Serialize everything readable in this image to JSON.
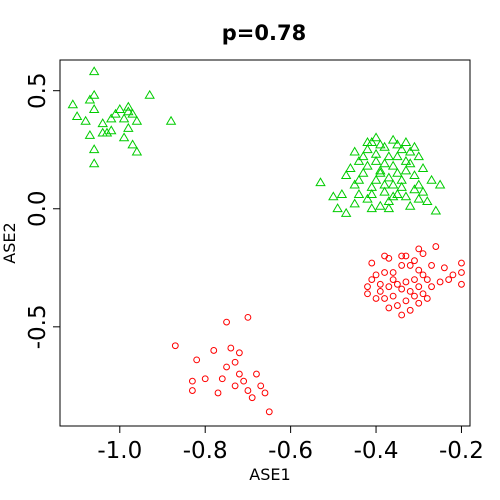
{
  "chart_data": {
    "type": "scatter",
    "title": "p=0.78",
    "xlabel": "ASE1",
    "ylabel": "ASE2",
    "xlim": [
      -1.14,
      -0.18
    ],
    "ylim": [
      -0.92,
      0.63
    ],
    "xticks": [
      -1.0,
      -0.8,
      -0.6,
      -0.4,
      -0.2
    ],
    "xtick_labels": [
      "-1.0",
      "-0.8",
      "-0.6",
      "-0.4",
      "-0.2"
    ],
    "yticks": [
      -0.5,
      0.0,
      0.5
    ],
    "ytick_labels": [
      "-0.5",
      "0.0",
      "0.5"
    ],
    "grid": false,
    "series": [
      {
        "marker": "triangle",
        "color": "#00cc00",
        "points": [
          [
            -1.06,
            0.58
          ],
          [
            -1.11,
            0.44
          ],
          [
            -1.07,
            0.46
          ],
          [
            -1.06,
            0.48
          ],
          [
            -1.06,
            0.42
          ],
          [
            -1.08,
            0.37
          ],
          [
            -1.1,
            0.39
          ],
          [
            -1.04,
            0.32
          ],
          [
            -1.07,
            0.31
          ],
          [
            -1.03,
            0.32
          ],
          [
            -1.02,
            0.38
          ],
          [
            -1.01,
            0.4
          ],
          [
            -1.0,
            0.42
          ],
          [
            -0.99,
            0.38
          ],
          [
            -0.98,
            0.41
          ],
          [
            -0.97,
            0.4
          ],
          [
            -0.96,
            0.37
          ],
          [
            -0.98,
            0.34
          ],
          [
            -0.99,
            0.3
          ],
          [
            -0.97,
            0.27
          ],
          [
            -0.96,
            0.24
          ],
          [
            -1.06,
            0.25
          ],
          [
            -1.06,
            0.19
          ],
          [
            -0.98,
            0.43
          ],
          [
            -0.93,
            0.48
          ],
          [
            -0.88,
            0.37
          ],
          [
            -1.04,
            0.36
          ],
          [
            -1.02,
            0.33
          ],
          [
            -0.4,
            0.3
          ],
          [
            -0.41,
            0.28
          ],
          [
            -0.39,
            0.27
          ],
          [
            -0.38,
            0.26
          ],
          [
            -0.36,
            0.29
          ],
          [
            -0.35,
            0.27
          ],
          [
            -0.34,
            0.25
          ],
          [
            -0.33,
            0.28
          ],
          [
            -0.32,
            0.24
          ],
          [
            -0.31,
            0.26
          ],
          [
            -0.3,
            0.22
          ],
          [
            -0.42,
            0.25
          ],
          [
            -0.43,
            0.22
          ],
          [
            -0.44,
            0.2
          ],
          [
            -0.45,
            0.24
          ],
          [
            -0.46,
            0.17
          ],
          [
            -0.47,
            0.14
          ],
          [
            -0.45,
            0.1
          ],
          [
            -0.44,
            0.06
          ],
          [
            -0.42,
            0.04
          ],
          [
            -0.41,
            0.09
          ],
          [
            -0.4,
            0.12
          ],
          [
            -0.39,
            0.16
          ],
          [
            -0.38,
            0.19
          ],
          [
            -0.37,
            0.22
          ],
          [
            -0.36,
            0.18
          ],
          [
            -0.35,
            0.15
          ],
          [
            -0.34,
            0.12
          ],
          [
            -0.33,
            0.16
          ],
          [
            -0.32,
            0.19
          ],
          [
            -0.31,
            0.14
          ],
          [
            -0.3,
            0.1
          ],
          [
            -0.29,
            0.07
          ],
          [
            -0.3,
            0.04
          ],
          [
            -0.32,
            0.01
          ],
          [
            -0.35,
            0.06
          ],
          [
            -0.37,
            0.03
          ],
          [
            -0.38,
            0.07
          ],
          [
            -0.39,
            0.01
          ],
          [
            -0.41,
            0.0
          ],
          [
            -0.43,
            0.15
          ],
          [
            -0.48,
            0.06
          ],
          [
            -0.5,
            0.05
          ],
          [
            -0.53,
            0.11
          ],
          [
            -0.49,
            0.0
          ],
          [
            -0.47,
            -0.02
          ],
          [
            -0.45,
            0.02
          ],
          [
            -0.4,
            0.2
          ],
          [
            -0.37,
            0.13
          ],
          [
            -0.34,
            0.09
          ],
          [
            -0.36,
            0.1
          ],
          [
            -0.33,
            0.05
          ],
          [
            -0.28,
            0.03
          ],
          [
            -0.27,
            0.12
          ],
          [
            -0.25,
            0.1
          ],
          [
            -0.29,
            0.17
          ],
          [
            -0.33,
            0.2
          ],
          [
            -0.35,
            0.22
          ],
          [
            -0.4,
            0.23
          ],
          [
            -0.42,
            0.18
          ],
          [
            -0.44,
            0.12
          ],
          [
            -0.38,
            0.1
          ],
          [
            -0.36,
            0.05
          ],
          [
            -0.31,
            0.08
          ],
          [
            -0.39,
            0.15
          ],
          [
            -0.41,
            0.06
          ],
          [
            -0.37,
            0.0
          ],
          [
            -0.26,
            -0.01
          ],
          [
            -0.42,
            0.28
          ]
        ]
      },
      {
        "marker": "circle",
        "color": "#ff0000",
        "points": [
          [
            -0.37,
            -0.21
          ],
          [
            -0.38,
            -0.2
          ],
          [
            -0.41,
            -0.23
          ],
          [
            -0.33,
            -0.2
          ],
          [
            -0.3,
            -0.17
          ],
          [
            -0.29,
            -0.19
          ],
          [
            -0.26,
            -0.16
          ],
          [
            -0.2,
            -0.23
          ],
          [
            -0.2,
            -0.27
          ],
          [
            -0.2,
            -0.32
          ],
          [
            -0.22,
            -0.28
          ],
          [
            -0.24,
            -0.25
          ],
          [
            -0.27,
            -0.24
          ],
          [
            -0.3,
            -0.26
          ],
          [
            -0.32,
            -0.24
          ],
          [
            -0.34,
            -0.24
          ],
          [
            -0.36,
            -0.27
          ],
          [
            -0.38,
            -0.27
          ],
          [
            -0.4,
            -0.28
          ],
          [
            -0.41,
            -0.3
          ],
          [
            -0.42,
            -0.33
          ],
          [
            -0.42,
            -0.36
          ],
          [
            -0.39,
            -0.35
          ],
          [
            -0.37,
            -0.33
          ],
          [
            -0.35,
            -0.32
          ],
          [
            -0.33,
            -0.31
          ],
          [
            -0.31,
            -0.3
          ],
          [
            -0.29,
            -0.28
          ],
          [
            -0.28,
            -0.3
          ],
          [
            -0.3,
            -0.33
          ],
          [
            -0.32,
            -0.35
          ],
          [
            -0.34,
            -0.34
          ],
          [
            -0.36,
            -0.37
          ],
          [
            -0.38,
            -0.38
          ],
          [
            -0.4,
            -0.38
          ],
          [
            -0.35,
            -0.41
          ],
          [
            -0.33,
            -0.39
          ],
          [
            -0.31,
            -0.37
          ],
          [
            -0.29,
            -0.36
          ],
          [
            -0.27,
            -0.33
          ],
          [
            -0.25,
            -0.31
          ],
          [
            -0.32,
            -0.43
          ],
          [
            -0.34,
            -0.45
          ],
          [
            -0.37,
            -0.42
          ],
          [
            -0.39,
            -0.32
          ],
          [
            -0.36,
            -0.3
          ],
          [
            -0.31,
            -0.22
          ],
          [
            -0.34,
            -0.2
          ],
          [
            -0.28,
            -0.38
          ],
          [
            -0.3,
            -0.4
          ],
          [
            -0.23,
            -0.3
          ],
          [
            -0.75,
            -0.48
          ],
          [
            -0.7,
            -0.46
          ],
          [
            -0.87,
            -0.58
          ],
          [
            -0.82,
            -0.64
          ],
          [
            -0.78,
            -0.6
          ],
          [
            -0.74,
            -0.59
          ],
          [
            -0.72,
            -0.61
          ],
          [
            -0.73,
            -0.65
          ],
          [
            -0.75,
            -0.67
          ],
          [
            -0.72,
            -0.7
          ],
          [
            -0.71,
            -0.73
          ],
          [
            -0.68,
            -0.7
          ],
          [
            -0.67,
            -0.75
          ],
          [
            -0.7,
            -0.77
          ],
          [
            -0.73,
            -0.75
          ],
          [
            -0.76,
            -0.72
          ],
          [
            -0.8,
            -0.72
          ],
          [
            -0.83,
            -0.73
          ],
          [
            -0.83,
            -0.77
          ],
          [
            -0.77,
            -0.78
          ],
          [
            -0.69,
            -0.8
          ],
          [
            -0.66,
            -0.78
          ],
          [
            -0.65,
            -0.86
          ]
        ]
      }
    ]
  }
}
